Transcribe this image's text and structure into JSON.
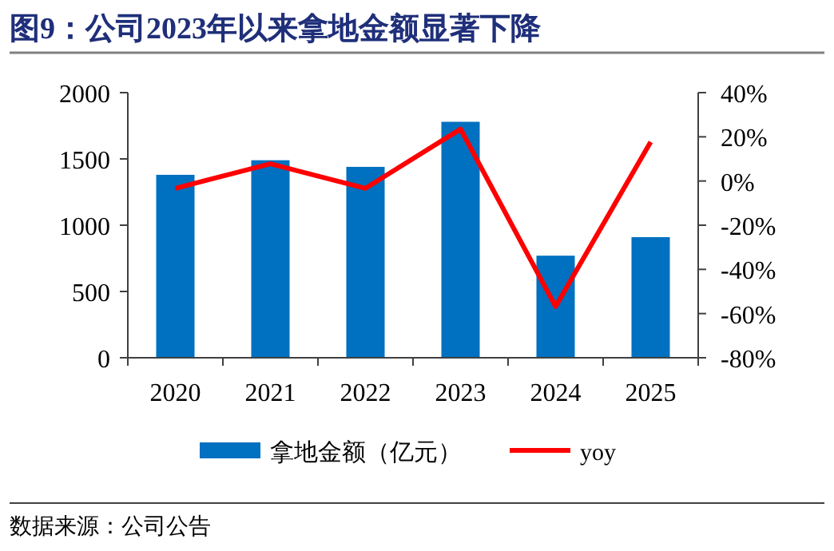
{
  "chart_data": {
    "type": "bar",
    "title": "图9：公司2023年以来拿地金额显著下降",
    "categories": [
      "2020",
      "2021",
      "2022",
      "2023",
      "2024",
      "2025"
    ],
    "series": [
      {
        "name": "拿地金额（亿元）",
        "color": "#0070c0",
        "values": [
          1380,
          1490,
          1440,
          1780,
          770,
          910
        ]
      },
      {
        "name": "yoy",
        "type": "line",
        "axis": "y2",
        "color": "#ff0000",
        "values": [
          -3.3,
          7.8,
          -3.3,
          23.5,
          -56.8,
          17.7
        ]
      }
    ],
    "ylim": [
      0,
      2000
    ],
    "yticks": [
      0,
      500,
      1000,
      1500,
      2000
    ],
    "y2lim": [
      -80,
      40
    ],
    "y2ticks": [
      {
        "value": -80,
        "label": "-80%"
      },
      {
        "value": -60,
        "label": "-60%"
      },
      {
        "value": -40,
        "label": "-40%"
      },
      {
        "value": -20,
        "label": "-20%"
      },
      {
        "value": 0,
        "label": "0%"
      },
      {
        "value": 20,
        "label": "20%"
      },
      {
        "value": 40,
        "label": "40%"
      }
    ],
    "legend": "bottom",
    "grid": false,
    "annotations": [
      "数据来源：公司公告"
    ]
  }
}
